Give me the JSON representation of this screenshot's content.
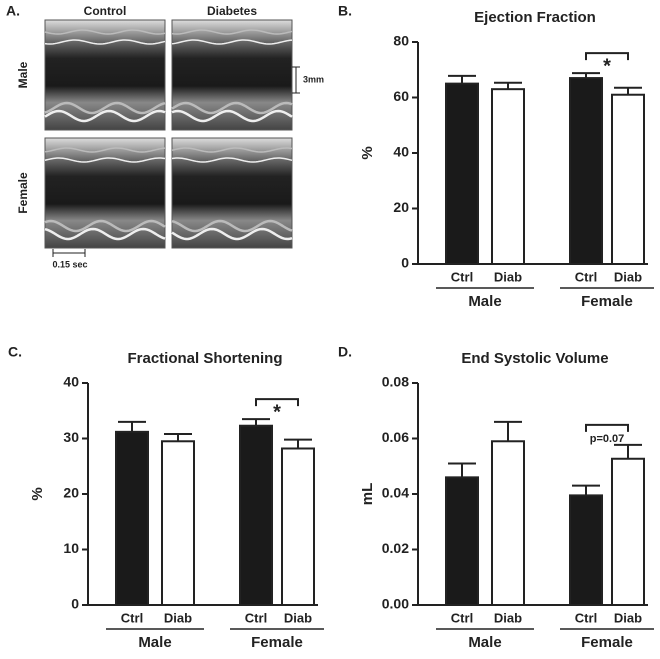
{
  "panel_a": {
    "label": "A.",
    "columns": [
      "Control",
      "Diabetes"
    ],
    "rows": [
      "Male",
      "Female"
    ],
    "scale_bars": [
      "3mm",
      "0.15 sec"
    ]
  },
  "chart_data": [
    {
      "type": "bar",
      "panel_label": "B.",
      "title": "Ejection Fraction",
      "ylabel": "%",
      "categories": [
        "Ctrl",
        "Diab",
        "Ctrl",
        "Diab"
      ],
      "groups": [
        "Male",
        "Female"
      ],
      "values": [
        65,
        63,
        67,
        61
      ],
      "errors": [
        2.8,
        2.3,
        1.8,
        2.5
      ],
      "colors": [
        "#1a1a1a",
        "#ffffff",
        "#1a1a1a",
        "#ffffff"
      ],
      "ylim": [
        0,
        80
      ],
      "yticks": [
        0,
        20,
        40,
        60,
        80
      ],
      "annotation": "*"
    },
    {
      "type": "bar",
      "panel_label": "C.",
      "title": "Fractional Shortening",
      "ylabel": "%",
      "categories": [
        "Ctrl",
        "Diab",
        "Ctrl",
        "Diab"
      ],
      "groups": [
        "Male",
        "Female"
      ],
      "values": [
        31.2,
        29.5,
        32.3,
        28.2
      ],
      "errors": [
        1.8,
        1.3,
        1.2,
        1.6
      ],
      "colors": [
        "#1a1a1a",
        "#ffffff",
        "#1a1a1a",
        "#ffffff"
      ],
      "ylim": [
        0,
        40
      ],
      "yticks": [
        0,
        10,
        20,
        30,
        40
      ],
      "annotation": "*"
    },
    {
      "type": "bar",
      "panel_label": "D.",
      "title": "End Systolic Volume",
      "ylabel": "mL",
      "categories": [
        "Ctrl",
        "Diab",
        "Ctrl",
        "Diab"
      ],
      "groups": [
        "Male",
        "Female"
      ],
      "values": [
        0.046,
        0.059,
        0.0395,
        0.0527
      ],
      "errors": [
        0.005,
        0.007,
        0.0035,
        0.005
      ],
      "colors": [
        "#1a1a1a",
        "#ffffff",
        "#1a1a1a",
        "#ffffff"
      ],
      "ylim": [
        0,
        0.08
      ],
      "yticks": [
        {
          "value": 0,
          "label": "0.00"
        },
        0.02,
        0.04,
        0.06,
        0.08
      ],
      "annotation": "p=0.07"
    }
  ]
}
